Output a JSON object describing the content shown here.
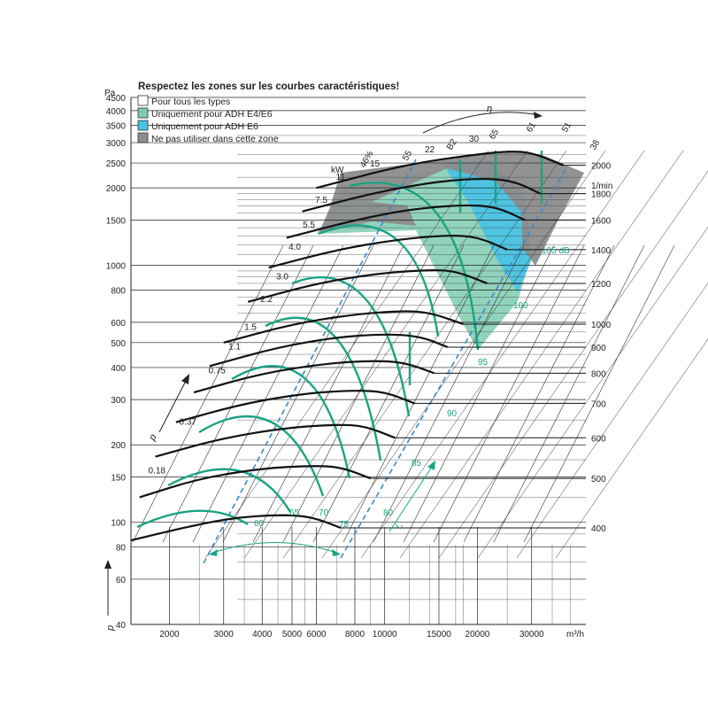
{
  "chart_data": {
    "type": "line",
    "title": "Respectez les zones sur les courbes caractéristiques!",
    "legend": [
      {
        "label": "Pour tous les types",
        "color": "#ffffff"
      },
      {
        "label": "Uniquement pour ADH E4/E6",
        "color": "#7fcbb0"
      },
      {
        "label": "Uniquement pour ADH E6",
        "color": "#47c2e6"
      },
      {
        "label": "Ne pas utiliser dans cette zone",
        "color": "#8c8c8c"
      }
    ],
    "y_unit": "Pa",
    "y_symbol": "p",
    "y_scale": "log",
    "y_range": [
      40,
      4500
    ],
    "y_ticks": [
      40,
      60,
      80,
      100,
      150,
      200,
      300,
      400,
      500,
      600,
      800,
      1000,
      1500,
      2000,
      2500,
      3000,
      3500,
      4000,
      4500
    ],
    "x_unit": "m³/h",
    "x_scale": "log",
    "x_range": [
      1500,
      45000
    ],
    "x_ticks": [
      2000,
      3000,
      4000,
      5000,
      6000,
      8000,
      10000,
      15000,
      20000,
      30000
    ],
    "speed_unit": "1/min",
    "speed_ticks": [
      2000,
      1800,
      1600,
      1400,
      1200,
      1000,
      900,
      800,
      700,
      600,
      500,
      400
    ],
    "power_unit": "kW",
    "power_labels": [
      "11",
      "7.5",
      "5.5",
      "4.0",
      "3.0",
      "2.2",
      "1.5",
      "1.1",
      "0.75",
      "0.37",
      "0.18"
    ],
    "efficiency_symbol": "η",
    "efficiency_labels": [
      "46%",
      "55",
      "B2",
      "65",
      "61",
      "51",
      "38"
    ],
    "extra_top_labels": [
      "15",
      "22",
      "30"
    ],
    "noise_symbol": "L",
    "noise_unit": "dB",
    "noise_labels": [
      "60",
      "65",
      "70",
      "75",
      "80",
      "85",
      "90",
      "95",
      "100",
      "105 dB"
    ],
    "speed_curves": [
      {
        "rpm": 2000,
        "points": [
          [
            6000,
            2000
          ],
          [
            10000,
            2350
          ],
          [
            14000,
            2550
          ],
          [
            20000,
            2700
          ],
          [
            25000,
            2780
          ],
          [
            30000,
            2750
          ],
          [
            38000,
            2450
          ]
        ]
      },
      {
        "rpm": 1800,
        "points": [
          [
            5400,
            1620
          ],
          [
            9000,
            1900
          ],
          [
            14000,
            2100
          ],
          [
            20000,
            2180
          ],
          [
            26000,
            2140
          ],
          [
            32000,
            1900
          ]
        ]
      },
      {
        "rpm": 1600,
        "points": [
          [
            4800,
            1280
          ],
          [
            8000,
            1500
          ],
          [
            12000,
            1650
          ],
          [
            18000,
            1720
          ],
          [
            23000,
            1690
          ],
          [
            28500,
            1500
          ]
        ]
      },
      {
        "rpm": 1400,
        "points": [
          [
            4200,
            980
          ],
          [
            7000,
            1150
          ],
          [
            11000,
            1260
          ],
          [
            16000,
            1310
          ],
          [
            20000,
            1290
          ],
          [
            25000,
            1150
          ]
        ]
      },
      {
        "rpm": 1200,
        "points": [
          [
            3600,
            720
          ],
          [
            6000,
            850
          ],
          [
            9500,
            930
          ],
          [
            14000,
            960
          ],
          [
            17000,
            950
          ],
          [
            21500,
            850
          ]
        ]
      },
      {
        "rpm": 1000,
        "points": [
          [
            3000,
            500
          ],
          [
            5000,
            590
          ],
          [
            8000,
            645
          ],
          [
            11500,
            665
          ],
          [
            14000,
            655
          ],
          [
            18000,
            590
          ]
        ]
      },
      {
        "rpm": 900,
        "points": [
          [
            2700,
            405
          ],
          [
            4500,
            480
          ],
          [
            7000,
            525
          ],
          [
            10000,
            540
          ],
          [
            13000,
            530
          ],
          [
            16000,
            480
          ]
        ]
      },
      {
        "rpm": 800,
        "points": [
          [
            2400,
            320
          ],
          [
            4000,
            380
          ],
          [
            6500,
            415
          ],
          [
            9000,
            425
          ],
          [
            11500,
            420
          ],
          [
            14500,
            380
          ]
        ]
      },
      {
        "rpm": 700,
        "points": [
          [
            2100,
            245
          ],
          [
            3500,
            290
          ],
          [
            5600,
            318
          ],
          [
            8000,
            326
          ],
          [
            10000,
            322
          ],
          [
            12500,
            290
          ]
        ]
      },
      {
        "rpm": 600,
        "points": [
          [
            1800,
            180
          ],
          [
            3000,
            213
          ],
          [
            4800,
            233
          ],
          [
            7000,
            240
          ],
          [
            8600,
            237
          ],
          [
            10800,
            213
          ]
        ]
      },
      {
        "rpm": 500,
        "points": [
          [
            1600,
            125
          ],
          [
            2500,
            148
          ],
          [
            4000,
            162
          ],
          [
            5800,
            166
          ],
          [
            7200,
            164
          ],
          [
            9000,
            148
          ]
        ]
      },
      {
        "rpm": 400,
        "points": [
          [
            1500,
            85
          ],
          [
            2200,
            95
          ],
          [
            3200,
            104
          ],
          [
            4600,
            107
          ],
          [
            5800,
            105
          ],
          [
            7200,
            95
          ]
        ]
      }
    ]
  }
}
